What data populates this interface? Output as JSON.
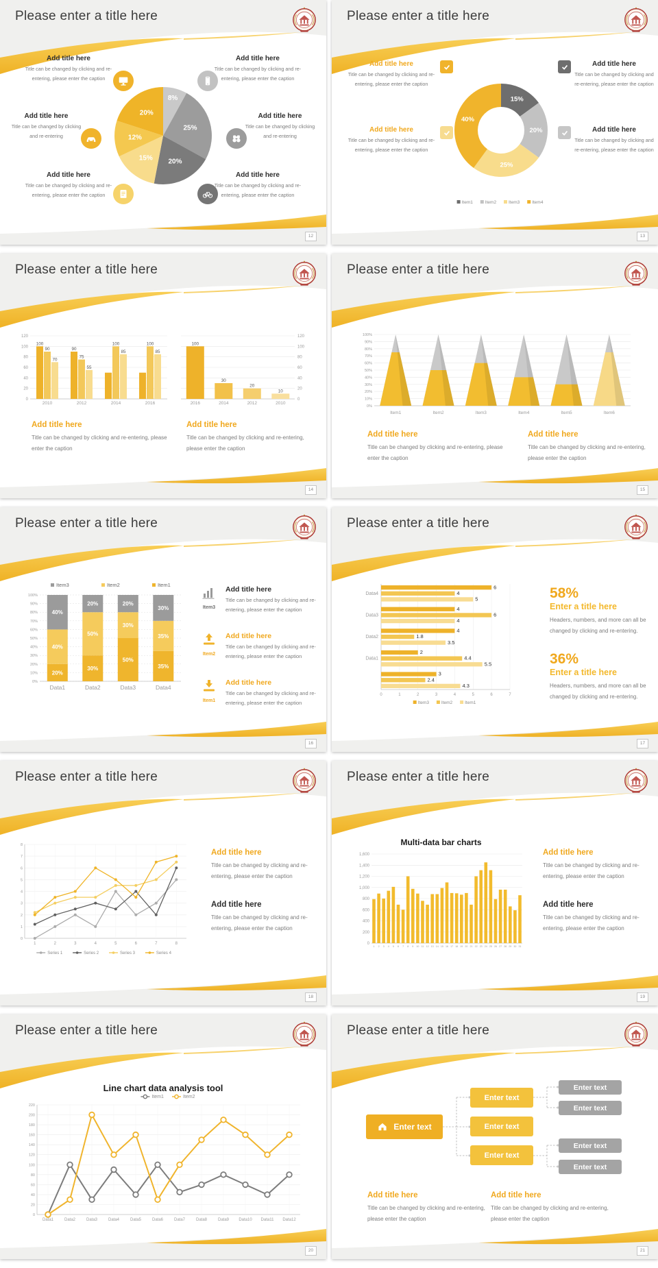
{
  "common": {
    "slide_title": "Please enter a title here",
    "caption_long": "Title can be changed by clicking and re-entering, please enter the caption",
    "caption_short": "Title can be changed by clicking and re-entering",
    "add_title": "Add title here"
  },
  "palette": {
    "gold": "#EFB428",
    "gold_mid": "#F4C84F",
    "gold_light": "#F8DC8C",
    "gray_dark": "#6E6E6E",
    "gray_mid": "#9C9C9C",
    "gray_light": "#C9C9C9",
    "accent_title": "#F0A81E"
  },
  "slides": [
    {
      "page": "12",
      "title": "Please enter a title here",
      "callouts": [
        {
          "title": "Add title here",
          "caption": "Title can be changed by clicking and re-entering, please enter the caption"
        },
        {
          "title": "Add title here",
          "caption": "Title can be changed by clicking and re-entering, please enter the caption"
        },
        {
          "title": "Add title here",
          "caption": "Title can be changed by clicking and re-entering"
        },
        {
          "title": "Add title here",
          "caption": "Title can be changed by clicking and re-entering"
        },
        {
          "title": "Add title here",
          "caption": "Title can be changed by clicking and re-entering, please enter the caption"
        },
        {
          "title": "Add title here",
          "caption": "Title can be changed by clicking and re-entering, please enter the caption"
        }
      ],
      "chart_data": {
        "type": "pie",
        "slices": [
          {
            "label": "8%",
            "value": 8,
            "color": "#C9C9C9"
          },
          {
            "label": "25%",
            "value": 25,
            "color": "#9C9C9C"
          },
          {
            "label": "20%",
            "value": 20,
            "color": "#7B7B7B"
          },
          {
            "label": "15%",
            "value": 15,
            "color": "#F8DC8C"
          },
          {
            "label": "12%",
            "value": 12,
            "color": "#F4C84F"
          },
          {
            "label": "20%",
            "value": 20,
            "color": "#EFB428"
          }
        ]
      }
    },
    {
      "page": "13",
      "title": "Please enter a title here",
      "callouts": [
        {
          "title": "Add title here",
          "caption": "Title can be changed by clicking and re-entering, please enter the caption"
        },
        {
          "title": "Add title here",
          "caption": "Title can be changed by clicking and re-entering, please enter the caption"
        },
        {
          "title": "Add title here",
          "caption": "Title can be changed by clicking and re-entering, please enter the caption"
        },
        {
          "title": "Add title here",
          "caption": "Title can be changed by clicking and re-entering, please enter the caption"
        }
      ],
      "chart_data": {
        "type": "pie",
        "subtype": "donut",
        "slices": [
          {
            "label": "15%",
            "value": 15,
            "color": "#6E6E6E"
          },
          {
            "label": "20%",
            "value": 20,
            "color": "#C2C2C2"
          },
          {
            "label": "25%",
            "value": 25,
            "color": "#F8DC8C"
          },
          {
            "label": "40%",
            "value": 40,
            "color": "#F0B42C"
          }
        ],
        "legend": [
          {
            "label": "Item1",
            "color": "#6E6E6E"
          },
          {
            "label": "Item2",
            "color": "#C2C2C2"
          },
          {
            "label": "Item3",
            "color": "#F8DC8C"
          },
          {
            "label": "Item4",
            "color": "#F0B42C"
          }
        ]
      }
    },
    {
      "page": "14",
      "title": "Please enter a title here",
      "callouts": [
        {
          "title": "Add title here",
          "caption": "Title can be changed by clicking and re-entering, please enter the caption"
        },
        {
          "title": "Add title here",
          "caption": "Title can be changed by clicking and re-entering, please enter the caption"
        }
      ],
      "chart_data": [
        {
          "type": "bar",
          "ylim": [
            0,
            120
          ],
          "yticks": [
            0,
            20,
            40,
            60,
            80,
            100,
            120
          ],
          "axis_side": "left",
          "categories": [
            "2010",
            "2012",
            "2014",
            "2016"
          ],
          "series": [
            {
              "name": "bar1",
              "color": "#EEB22A",
              "values": [
                100,
                90,
                50,
                50
              ]
            },
            {
              "name": "bar2",
              "color": "#F3C85A",
              "values": [
                90,
                75,
                100,
                100
              ]
            },
            {
              "name": "bar3",
              "color": "#F8DC8F",
              "values": [
                70,
                55,
                85,
                85
              ]
            }
          ],
          "bar_labels": [
            [
              "100",
              "90",
              "70"
            ],
            [
              "90",
              "75",
              "55"
            ],
            [
              "",
              "100",
              "85"
            ],
            [
              "",
              "100",
              "85"
            ]
          ]
        },
        {
          "type": "bar",
          "ylim": [
            0,
            120
          ],
          "yticks": [
            0,
            20,
            40,
            60,
            80,
            100,
            120
          ],
          "axis_side": "right",
          "categories": [
            "2016",
            "2014",
            "2012",
            "2010"
          ],
          "values": [
            100,
            30,
            20,
            10
          ],
          "labels": [
            "100",
            "30",
            "20",
            "10"
          ],
          "colors": [
            "#EEB22A",
            "#F2C14A",
            "#F5CE6E",
            "#F9DF9E"
          ]
        }
      ]
    },
    {
      "page": "15",
      "title": "Please enter a title here",
      "callouts": [
        {
          "title": "Add title here",
          "caption": "Title can be changed by clicking and re-entering, please enter the caption"
        },
        {
          "title": "Add title here",
          "caption": "Title can be changed by clicking and re-entering, please enter the caption"
        }
      ],
      "chart_data": {
        "type": "bar",
        "subtype": "cone",
        "ylim": [
          0,
          100
        ],
        "yticks_pct": [
          "0%",
          "10%",
          "20%",
          "30%",
          "40%",
          "50%",
          "60%",
          "70%",
          "80%",
          "90%",
          "100%"
        ],
        "categories": [
          "Item1",
          "Item2",
          "Item3",
          "Item4",
          "Item5",
          "Item6"
        ],
        "values": [
          75,
          50,
          60,
          40,
          30,
          75
        ],
        "colors": [
          "#F2BD30",
          "#F2BD30",
          "#F2BD30",
          "#F2BD30",
          "#F2BD30",
          "#F7D987"
        ],
        "top_color": "#C9C9C9"
      }
    },
    {
      "page": "16",
      "title": "Please enter a title here",
      "items": [
        {
          "item": "Item3",
          "title": "Add title here",
          "caption": "Title can be changed by clicking and re-entering, please enter the caption"
        },
        {
          "item": "Item2",
          "title": "Add title here",
          "caption": "Title can be changed by clicking and re-entering, please enter the caption"
        },
        {
          "item": "Item1",
          "title": "Add title here",
          "caption": "Title can be changed by clicking and re-entering, please enter the caption"
        }
      ],
      "chart_data": {
        "type": "bar",
        "subtype": "stacked_percent",
        "categories": [
          "Data1",
          "Data2",
          "Data3",
          "Data4"
        ],
        "yticks_pct": [
          "0%",
          "10%",
          "20%",
          "30%",
          "40%",
          "50%",
          "60%",
          "70%",
          "80%",
          "90%",
          "100%"
        ],
        "series": [
          {
            "name": "Item1",
            "color": "#EFB52D",
            "values": [
              20,
              30,
              50,
              35
            ]
          },
          {
            "name": "Item2",
            "color": "#F5CB5C",
            "values": [
              40,
              50,
              30,
              35
            ]
          },
          {
            "name": "Item3",
            "color": "#9B9B9B",
            "values": [
              40,
              20,
              20,
              30
            ]
          }
        ],
        "legend_order": [
          "Item3",
          "Item2",
          "Item1"
        ]
      }
    },
    {
      "page": "17",
      "title": "Please enter a title here",
      "stats": [
        {
          "pct": "58%",
          "title": "Enter a title here",
          "caption": "Headers, numbers, and more can all be changed by clicking and re-entering."
        },
        {
          "pct": "36%",
          "title": "Enter a title here",
          "caption": "Headers, numbers, and more can all be changed by clicking and re-entering."
        }
      ],
      "chart_data": {
        "type": "bar",
        "subtype": "horizontal",
        "xlim": [
          0,
          7
        ],
        "xticks": [
          0,
          1,
          2,
          3,
          4,
          5,
          6,
          7
        ],
        "series_names": [
          "Item3",
          "Item2",
          "Item1"
        ],
        "series_colors": [
          "#EEB22A",
          "#F3C652",
          "#F8DC92"
        ],
        "groups": [
          {
            "label": "Data4",
            "values": [
              6,
              4,
              5
            ],
            "labels": [
              "6",
              "4",
              "5"
            ]
          },
          {
            "label": "Data3",
            "values": [
              4,
              6,
              4
            ],
            "labels": [
              "4",
              "6",
              "4"
            ]
          },
          {
            "label": "Data2",
            "values": [
              4,
              1.8,
              3.5
            ],
            "labels": [
              "4",
              "1.8",
              "3.5"
            ]
          },
          {
            "label": "Data1",
            "values": [
              2,
              4.4,
              5.5
            ],
            "labels": [
              "2",
              "4.4",
              "5.5"
            ]
          },
          {
            "label": "",
            "values": [
              3,
              2.4,
              4.3
            ],
            "labels": [
              "3",
              "2.4",
              "4.3"
            ]
          }
        ]
      }
    },
    {
      "page": "18",
      "title": "Please enter a title here",
      "callouts": [
        {
          "title": "Add title here",
          "caption": "Title can be changed by clicking and re-entering, please enter the caption"
        },
        {
          "title": "Add title here",
          "caption": "Title can be changed by clicking and re-entering, please enter the caption"
        }
      ],
      "chart_data": {
        "type": "line",
        "ylim": [
          0,
          8
        ],
        "ystep": 1,
        "x": [
          "1",
          "2",
          "3",
          "4",
          "5",
          "6",
          "7",
          "8"
        ],
        "series": [
          {
            "name": "Series 1",
            "color": "#ABABAB",
            "values": [
              0,
              1,
              2,
              1,
              4,
              2,
              3,
              5
            ]
          },
          {
            "name": "Series 2",
            "color": "#606060",
            "values": [
              1.2,
              2,
              2.5,
              3,
              2.5,
              4,
              2,
              6
            ]
          },
          {
            "name": "Series 3",
            "color": "#F4CE60",
            "values": [
              2.2,
              3,
              3.5,
              3.5,
              4.5,
              4.5,
              5,
              6.5
            ]
          },
          {
            "name": "Series 4",
            "color": "#EFB428",
            "values": [
              2,
              3.5,
              4,
              6,
              5,
              3.5,
              6.5,
              7
            ]
          }
        ]
      }
    },
    {
      "page": "19",
      "title": "Please enter a title here",
      "callouts": [
        {
          "title": "Add title here",
          "caption": "Title can be changed by clicking and re-entering, please enter the caption"
        },
        {
          "title": "Add title here",
          "caption": "Title can be changed by clicking and re-entering, please enter the caption"
        }
      ],
      "chart_data": {
        "type": "bar",
        "title": "Multi-data bar charts",
        "color": "#F2BB2D",
        "ylim": [
          0,
          1600
        ],
        "yticks": [
          0,
          200,
          400,
          600,
          800,
          1000,
          1200,
          1400,
          1600
        ],
        "categories": [
          "1",
          "2",
          "3",
          "4",
          "5",
          "6",
          "7",
          "8",
          "9",
          "10",
          "11",
          "12",
          "13",
          "14",
          "15",
          "16",
          "17",
          "18",
          "19",
          "20",
          "21",
          "22",
          "23",
          "24",
          "25",
          "26",
          "27",
          "28",
          "29",
          "30",
          "31"
        ],
        "values": [
          790,
          890,
          800,
          940,
          1010,
          690,
          600,
          1200,
          975,
          890,
          760,
          690,
          880,
          880,
          990,
          1090,
          900,
          895,
          870,
          900,
          690,
          1200,
          1310,
          1450,
          1310,
          790,
          960,
          960,
          660,
          590,
          860
        ]
      }
    },
    {
      "page": "20",
      "title": "Please enter a title here",
      "chart_data": {
        "type": "line",
        "title": "Line chart data analysis tool",
        "ylim": [
          0,
          220
        ],
        "ystep": 20,
        "x": [
          "Data1",
          "Data2",
          "Data3",
          "Data4",
          "Data5",
          "Data6",
          "Data7",
          "Data8",
          "Data9",
          "Data10",
          "Data11",
          "Data12"
        ],
        "series": [
          {
            "name": "Item1",
            "color": "#7C7C7C",
            "values": [
              0,
              100,
              30,
              90,
              40,
              100,
              45,
              60,
              80,
              60,
              40,
              80
            ]
          },
          {
            "name": "Item2",
            "color": "#F0B42C",
            "values": [
              0,
              30,
              200,
              120,
              160,
              30,
              100,
              150,
              190,
              160,
              120,
              160
            ]
          }
        ]
      }
    },
    {
      "page": "21",
      "title": "Please enter a title here",
      "org": {
        "root": {
          "label": "Enter text"
        },
        "mid": [
          {
            "label": "Enter text"
          },
          {
            "label": "Enter text"
          },
          {
            "label": "Enter text"
          }
        ],
        "leaves": [
          {
            "label": "Enter text"
          },
          {
            "label": "Enter text"
          },
          {
            "label": "Enter text"
          },
          {
            "label": "Enter text"
          }
        ]
      },
      "callouts": [
        {
          "title": "Add title here",
          "caption": "Title can be changed by clicking and re-entering, please enter the caption"
        },
        {
          "title": "Add title here",
          "caption": "Title can be changed by clicking and re-entering, please enter the caption"
        }
      ]
    }
  ]
}
